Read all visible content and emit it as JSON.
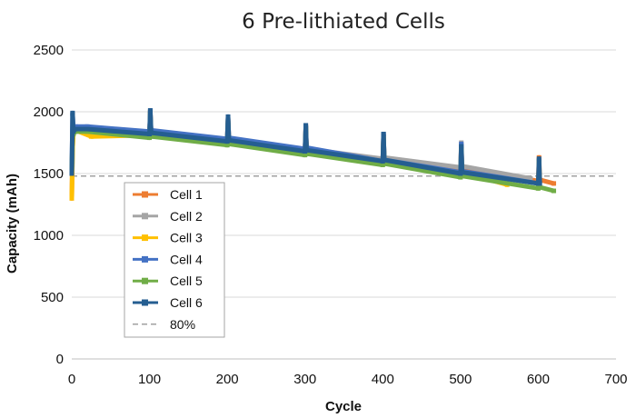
{
  "chart_data": {
    "type": "line",
    "title": "6 Pre-lithiated Cells",
    "xlabel": "Cycle",
    "ylabel": "Capacity (mAh)",
    "xlim": [
      0,
      700
    ],
    "ylim": [
      0,
      2500
    ],
    "x_ticks": [
      "0",
      "100",
      "200",
      "300",
      "400",
      "500",
      "600",
      "700"
    ],
    "y_ticks": [
      "0",
      "500",
      "1000",
      "1500",
      "2000",
      "2500"
    ],
    "grid": "horizontal",
    "legend_position": "lower-left",
    "reference_line": {
      "name": "80%",
      "value": 1480,
      "color": "#a0a0a0",
      "style": "dashed"
    },
    "series": [
      {
        "name": "Cell 1",
        "color": "#ed7d31",
        "x": [
          0,
          1,
          2,
          5,
          20,
          100,
          101,
          102,
          200,
          201,
          202,
          300,
          301,
          302,
          400,
          401,
          402,
          500,
          501,
          502,
          600,
          601,
          602,
          620
        ],
        "y": [
          1300,
          1700,
          1830,
          1860,
          1860,
          1820,
          2000,
          1830,
          1770,
          1950,
          1780,
          1690,
          1880,
          1700,
          1610,
          1800,
          1620,
          1540,
          1720,
          1550,
          1440,
          1630,
          1450,
          1420
        ]
      },
      {
        "name": "Cell 2",
        "color": "#a5a5a5",
        "x": [
          0,
          1,
          2,
          5,
          20,
          100,
          101,
          102,
          200,
          201,
          202,
          300,
          301,
          302,
          400,
          401,
          402,
          500,
          501,
          502,
          590
        ],
        "y": [
          1500,
          1800,
          1840,
          1860,
          1860,
          1820,
          2000,
          1830,
          1770,
          1950,
          1780,
          1690,
          1880,
          1700,
          1620,
          1810,
          1630,
          1550,
          1750,
          1560,
          1460
        ]
      },
      {
        "name": "Cell 3",
        "color": "#ffc000",
        "x": [
          0,
          1,
          2,
          5,
          25,
          100,
          101,
          102,
          200,
          201,
          202,
          300,
          301,
          302,
          400,
          401,
          402,
          500,
          501,
          502,
          560
        ],
        "y": [
          1300,
          1700,
          1820,
          1850,
          1800,
          1810,
          2000,
          1820,
          1750,
          1940,
          1760,
          1670,
          1870,
          1680,
          1590,
          1790,
          1600,
          1500,
          1700,
          1510,
          1410
        ]
      },
      {
        "name": "Cell 4",
        "color": "#4472c4",
        "x": [
          0,
          1,
          2,
          5,
          20,
          100,
          101,
          102,
          200,
          201,
          202,
          300,
          301,
          302,
          400,
          401,
          402,
          500,
          501,
          502,
          600
        ],
        "y": [
          1500,
          1980,
          1860,
          1880,
          1880,
          1840,
          2010,
          1850,
          1780,
          1960,
          1790,
          1700,
          1890,
          1710,
          1600,
          1820,
          1610,
          1510,
          1740,
          1520,
          1420
        ]
      },
      {
        "name": "Cell 5",
        "color": "#70ad47",
        "x": [
          0,
          1,
          2,
          5,
          20,
          100,
          101,
          102,
          200,
          201,
          202,
          300,
          301,
          302,
          400,
          401,
          402,
          500,
          501,
          502,
          600,
          601,
          602,
          620
        ],
        "y": [
          1500,
          1800,
          1820,
          1840,
          1840,
          1790,
          1980,
          1800,
          1730,
          1930,
          1740,
          1650,
          1860,
          1660,
          1570,
          1780,
          1580,
          1470,
          1700,
          1480,
          1380,
          1600,
          1390,
          1360
        ]
      },
      {
        "name": "Cell 6",
        "color": "#255e91",
        "x": [
          0,
          1,
          2,
          5,
          20,
          100,
          101,
          102,
          200,
          201,
          202,
          300,
          301,
          302,
          400,
          401,
          402,
          500,
          501,
          502,
          600,
          601,
          602
        ],
        "y": [
          1500,
          1990,
          1840,
          1860,
          1860,
          1820,
          2010,
          1830,
          1760,
          1960,
          1770,
          1680,
          1890,
          1690,
          1600,
          1820,
          1610,
          1500,
          1720,
          1510,
          1420,
          1620,
          1420
        ]
      }
    ]
  }
}
